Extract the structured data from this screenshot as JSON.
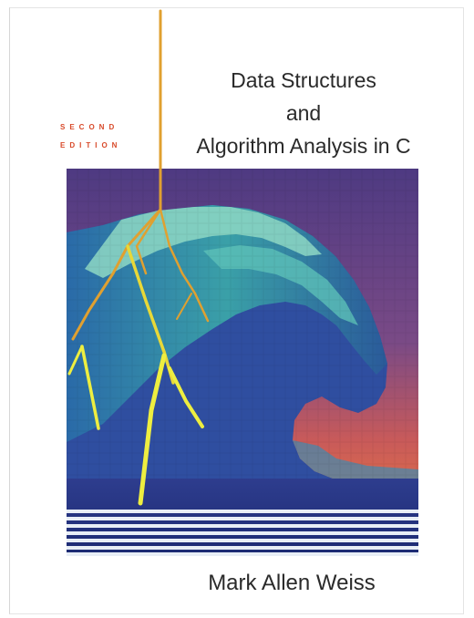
{
  "cover": {
    "title_lines": [
      "Data Structures",
      "and",
      "Algorithm Analysis in C"
    ],
    "edition_lines": [
      "SECOND",
      "EDITION"
    ],
    "author": "Mark Allen Weiss"
  },
  "colors": {
    "sky_top": "#5a3c7e",
    "sky_bottom": "#f07a3a",
    "wave_light": "#8ad6c8",
    "wave_mid": "#2e8aa0",
    "wave_dark": "#2a3a8a",
    "lightning": "#e8e838",
    "lightning_orange": "#e0a030",
    "edition_red": "#d84a2a"
  },
  "icons": {
    "artwork": "pixel-wave-with-lightning"
  }
}
